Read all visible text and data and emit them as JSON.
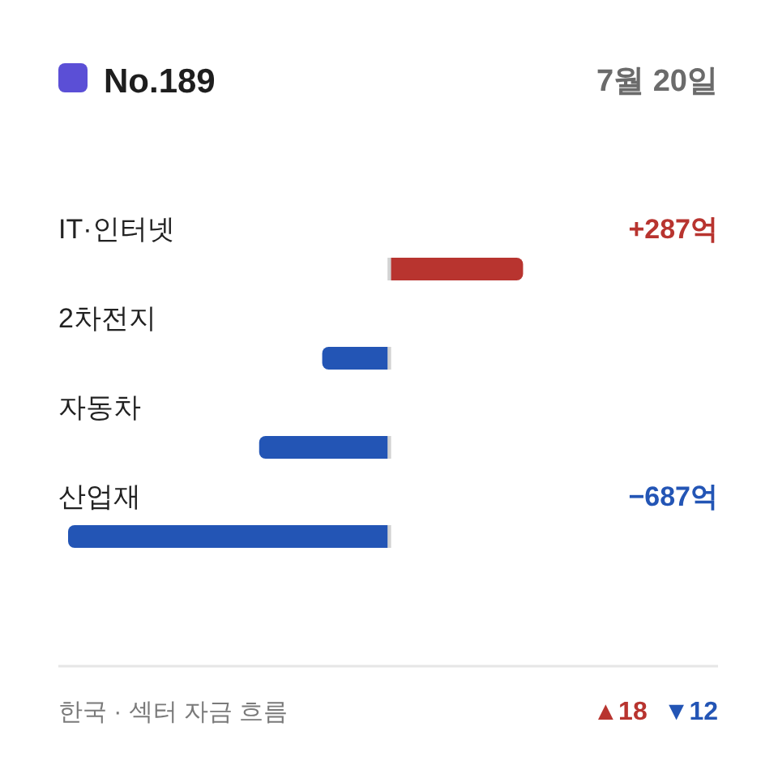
{
  "chart_data": {
    "type": "bar",
    "orientation": "horizontal",
    "title": "No.189",
    "subtitle": "7월 20일",
    "categories": [
      "IT·인터넷",
      "2차전지",
      "자동차",
      "산업재"
    ],
    "values": [
      287,
      -143,
      -278,
      -687
    ],
    "colors": [
      "#b8342f",
      "#2355b5",
      "#2355b5",
      "#2355b5"
    ],
    "value_labels": [
      "+287억",
      null,
      null,
      "−687억"
    ],
    "annotations": [
      "한국 · 섹터 자금 흐름",
      "▲18",
      "▼12"
    ]
  }
}
